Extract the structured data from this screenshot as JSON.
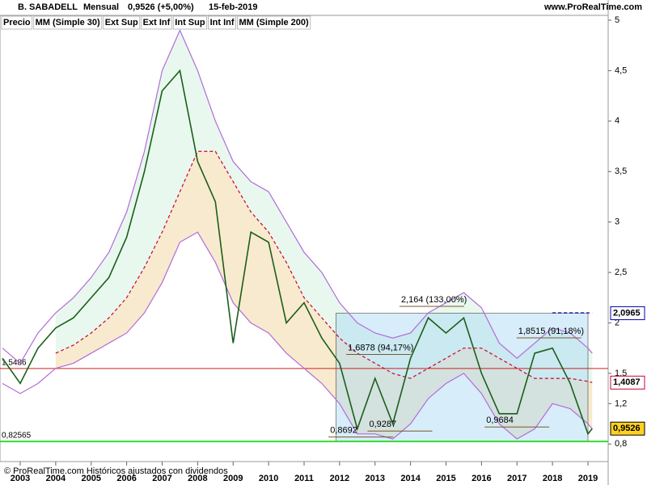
{
  "chart_data": {
    "type": "line",
    "header": {
      "name": "B. SABADELL",
      "period": "Mensual",
      "quote": "0,9526 (+5,00%)",
      "date": "15-feb-2019",
      "site": "www.ProRealTime.com"
    },
    "legend": [
      {
        "label": "Precio",
        "color": "#000000"
      },
      {
        "label": "MM (Simple 30)",
        "color": "#cc0033"
      },
      {
        "label": "Ext Sup",
        "color": "#b36bd9"
      },
      {
        "label": "Ext Inf",
        "color": "#b36bd9"
      },
      {
        "label": "Int Sup",
        "color": "#c8b4e0"
      },
      {
        "label": "Int Inf",
        "color": "#c8b4e0"
      },
      {
        "label": "MM (Simple 200)",
        "color": "#0000aa"
      }
    ],
    "footer": "© ProRealTime.com  Históricos ajustados con dividendos",
    "x": [
      2002.5,
      2003.0,
      2003.5,
      2004.0,
      2004.5,
      2005.0,
      2005.5,
      2006.0,
      2006.5,
      2007.0,
      2007.5,
      2008.0,
      2008.5,
      2009.0,
      2009.5,
      2010.0,
      2010.5,
      2011.0,
      2011.5,
      2012.0,
      2012.5,
      2013.0,
      2013.5,
      2014.0,
      2014.5,
      2015.0,
      2015.5,
      2016.0,
      2016.5,
      2017.0,
      2017.5,
      2018.0,
      2018.5,
      2019.0,
      2019.12
    ],
    "series": [
      {
        "name": "Ext Sup",
        "color": "#b36bd9",
        "values": [
          1.75,
          1.6,
          1.9,
          2.1,
          2.25,
          2.45,
          2.7,
          3.1,
          3.7,
          4.5,
          4.9,
          4.5,
          4.0,
          3.6,
          3.4,
          3.3,
          3.0,
          2.7,
          2.5,
          2.2,
          2.0,
          1.9,
          1.85,
          1.9,
          2.1,
          2.2,
          2.3,
          2.15,
          1.8,
          1.65,
          1.8,
          1.95,
          1.9,
          1.75,
          1.7
        ]
      },
      {
        "name": "Ext Inf",
        "color": "#b36bd9",
        "values": [
          1.4,
          1.3,
          1.4,
          1.55,
          1.6,
          1.7,
          1.8,
          1.9,
          2.1,
          2.4,
          2.8,
          2.9,
          2.6,
          2.2,
          2.0,
          1.9,
          1.7,
          1.55,
          1.4,
          1.2,
          0.9,
          0.9,
          0.85,
          1.0,
          1.25,
          1.4,
          1.5,
          1.3,
          1.0,
          0.85,
          0.95,
          1.2,
          1.15,
          1.0,
          0.95
        ]
      },
      {
        "name": "MM (Simple 30)",
        "color": "#cc0033",
        "dash": true,
        "values": [
          null,
          null,
          null,
          1.7,
          1.78,
          1.9,
          2.05,
          2.25,
          2.55,
          2.9,
          3.3,
          3.7,
          3.7,
          3.4,
          3.1,
          2.9,
          2.6,
          2.25,
          2.05,
          1.85,
          1.7,
          1.6,
          1.5,
          1.45,
          1.55,
          1.65,
          1.75,
          1.75,
          1.65,
          1.55,
          1.45,
          1.45,
          1.45,
          1.42,
          1.41
        ]
      },
      {
        "name": "MM (Simple 200)",
        "color": "#0000aa",
        "dash": true,
        "values": [
          null,
          null,
          null,
          null,
          null,
          null,
          null,
          null,
          null,
          null,
          null,
          null,
          null,
          null,
          null,
          null,
          null,
          null,
          null,
          null,
          null,
          null,
          null,
          null,
          null,
          null,
          null,
          null,
          null,
          null,
          null,
          2.1,
          2.1,
          2.1,
          2.0965
        ]
      },
      {
        "name": "Precio",
        "color": "#1a5e1a",
        "values": [
          1.65,
          1.4,
          1.75,
          1.95,
          2.05,
          2.25,
          2.45,
          2.85,
          3.5,
          4.3,
          4.5,
          3.6,
          3.2,
          1.8,
          2.9,
          2.8,
          2.0,
          2.2,
          1.85,
          1.6,
          0.95,
          1.45,
          1.0,
          1.65,
          2.05,
          1.9,
          2.05,
          1.5,
          1.1,
          1.1,
          1.7,
          1.75,
          1.4,
          0.9,
          0.9526
        ]
      }
    ],
    "hlines": [
      {
        "value": 0.82565,
        "label": "0,82565",
        "color": "#33dd33"
      },
      {
        "value": 1.5486,
        "label": "1,5486",
        "color": "#cc2222"
      }
    ],
    "price_labels": [
      {
        "value": 2.0965,
        "label": "2,0965",
        "color": "#0000aa",
        "bg": "#ffffff"
      },
      {
        "value": 1.4087,
        "label": "1,4087",
        "color": "#cc0033",
        "bg": "#ffffff"
      },
      {
        "value": 0.9526,
        "label": "0,9526",
        "color": "#000000",
        "bg": "#ffd21f"
      }
    ],
    "annotations": [
      {
        "text": "2,164 (133,00%)",
        "x": 2014.6,
        "y": 2.164
      },
      {
        "text": "1,6878 (94,17%)",
        "x": 2013.1,
        "y": 1.6878
      },
      {
        "text": "1,8515 (91,18%)",
        "x": 2017.9,
        "y": 1.8515
      },
      {
        "text": "0,8692",
        "x": 2012.6,
        "y": 0.8692
      },
      {
        "text": "0,9287",
        "x": 2013.7,
        "y": 0.9287
      },
      {
        "text": "0,9684",
        "x": 2017.0,
        "y": 0.9684
      }
    ],
    "xlim": [
      2002.43,
      2019.57
    ],
    "ylim": [
      0.65,
      5.04
    ],
    "xticks": [
      2003,
      2004,
      2005,
      2006,
      2007,
      2008,
      2009,
      2010,
      2011,
      2012,
      2013,
      2014,
      2015,
      2016,
      2017,
      2018,
      2019
    ],
    "yticks": [
      5,
      {
        "value": 4.5,
        "label": "4,5"
      },
      4,
      {
        "value": 3.5,
        "label": "3,5"
      },
      3,
      {
        "value": 2.5,
        "label": "2,5"
      },
      2,
      {
        "value": 1.5,
        "label": "1,5"
      },
      {
        "value": 1.2,
        "label": "1,2"
      },
      {
        "value": 0.8,
        "label": "0,8"
      }
    ]
  }
}
